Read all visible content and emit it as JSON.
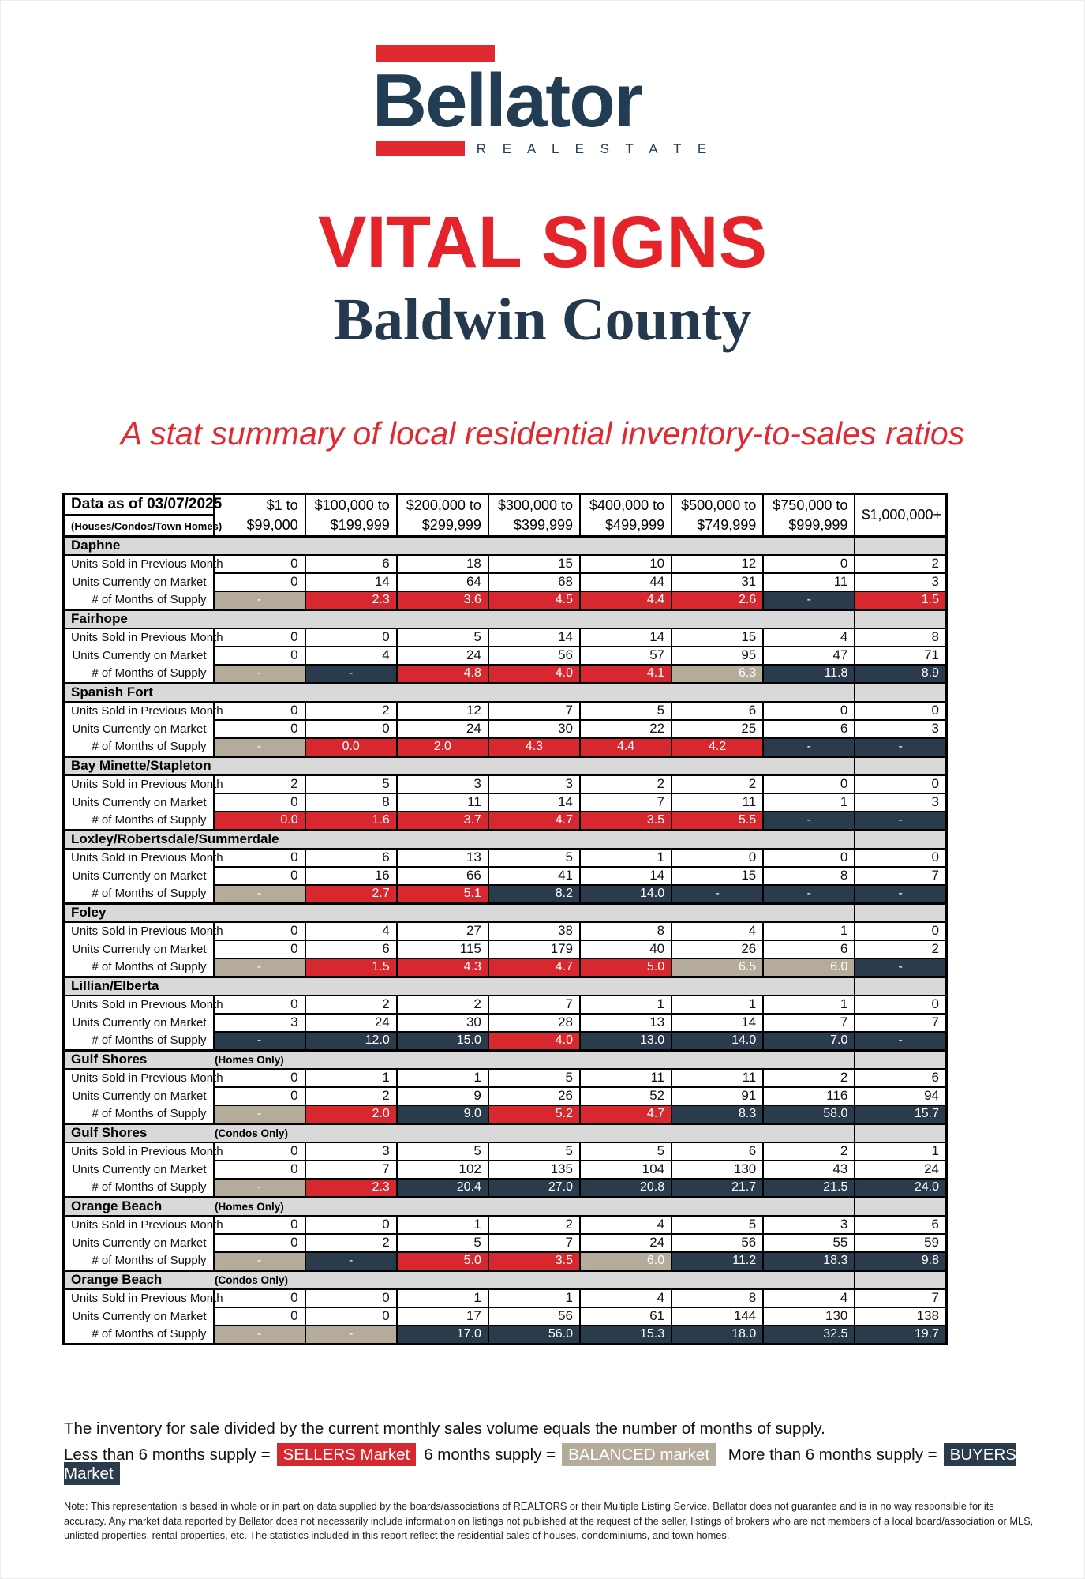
{
  "logo": {
    "brand": "Bellator",
    "tagline": "R E A L   E S T A T E"
  },
  "title": "VITAL SIGNS",
  "county": "Baldwin County",
  "tagline": "A stat summary of local residential inventory-to-sales ratios",
  "colors": {
    "red": "#d7282f",
    "tan": "#b5ab9a",
    "navy": "#2a3b4c",
    "heading_navy": "#223c54",
    "band_gray": "#d9d9d9"
  },
  "table": {
    "title_line1": "Data as of 03/07/2025",
    "title_line2": "(Houses/Condos/Town Homes)",
    "columns": [
      {
        "line1": "$1 to",
        "line2": "$99,000"
      },
      {
        "line1": "$100,000 to",
        "line2": "$199,999"
      },
      {
        "line1": "$200,000 to",
        "line2": "$299,999"
      },
      {
        "line1": "$300,000 to",
        "line2": "$399,999"
      },
      {
        "line1": "$400,000 to",
        "line2": "$499,999"
      },
      {
        "line1": "$500,000 to",
        "line2": "$749,999"
      },
      {
        "line1": "$750,000 to",
        "line2": "$999,999"
      },
      {
        "line1": "$1,000,000+",
        "line2": ""
      }
    ],
    "row_labels": [
      "Units Sold in Previous Month",
      "Units Currently on Market",
      "# of Months of Supply"
    ],
    "sections": [
      {
        "name": "Daphne",
        "note": "",
        "sold": [
          "0",
          "6",
          "18",
          "15",
          "10",
          "12",
          "0",
          "2"
        ],
        "on_market": [
          "0",
          "14",
          "64",
          "68",
          "44",
          "31",
          "11",
          "3"
        ],
        "supply": [
          {
            "v": "-",
            "c": "tan"
          },
          {
            "v": "2.3",
            "c": "red"
          },
          {
            "v": "3.6",
            "c": "red"
          },
          {
            "v": "4.5",
            "c": "red"
          },
          {
            "v": "4.4",
            "c": "red"
          },
          {
            "v": "2.6",
            "c": "red"
          },
          {
            "v": "-",
            "c": "navy"
          },
          {
            "v": "1.5",
            "c": "red"
          }
        ]
      },
      {
        "name": "Fairhope",
        "note": "",
        "sold": [
          "0",
          "0",
          "5",
          "14",
          "14",
          "15",
          "4",
          "8"
        ],
        "on_market": [
          "0",
          "4",
          "24",
          "56",
          "57",
          "95",
          "47",
          "71"
        ],
        "supply": [
          {
            "v": "-",
            "c": "tan"
          },
          {
            "v": "-",
            "c": "navy"
          },
          {
            "v": "4.8",
            "c": "red"
          },
          {
            "v": "4.0",
            "c": "red"
          },
          {
            "v": "4.1",
            "c": "red"
          },
          {
            "v": "6.3",
            "c": "tan"
          },
          {
            "v": "11.8",
            "c": "navy"
          },
          {
            "v": "8.9",
            "c": "navy"
          }
        ]
      },
      {
        "name": "Spanish Fort",
        "note": "",
        "center": true,
        "sold": [
          "0",
          "2",
          "12",
          "7",
          "5",
          "6",
          "0",
          "0"
        ],
        "on_market": [
          "0",
          "0",
          "24",
          "30",
          "22",
          "25",
          "6",
          "3"
        ],
        "supply": [
          {
            "v": "-",
            "c": "tan"
          },
          {
            "v": "0.0",
            "c": "red"
          },
          {
            "v": "2.0",
            "c": "red"
          },
          {
            "v": "4.3",
            "c": "red"
          },
          {
            "v": "4.4",
            "c": "red"
          },
          {
            "v": "4.2",
            "c": "red"
          },
          {
            "v": "-",
            "c": "navy"
          },
          {
            "v": "-",
            "c": "navy"
          }
        ]
      },
      {
        "name": "Bay Minette/Stapleton",
        "note": "",
        "sold": [
          "2",
          "5",
          "3",
          "3",
          "2",
          "2",
          "0",
          "0"
        ],
        "on_market": [
          "0",
          "8",
          "11",
          "14",
          "7",
          "11",
          "1",
          "3"
        ],
        "supply": [
          {
            "v": "0.0",
            "c": "red"
          },
          {
            "v": "1.6",
            "c": "red"
          },
          {
            "v": "3.7",
            "c": "red"
          },
          {
            "v": "4.7",
            "c": "red"
          },
          {
            "v": "3.5",
            "c": "red"
          },
          {
            "v": "5.5",
            "c": "red"
          },
          {
            "v": "-",
            "c": "navy"
          },
          {
            "v": "-",
            "c": "navy"
          }
        ]
      },
      {
        "name": "Loxley/Robertsdale/Summerdale",
        "note": "",
        "sold": [
          "0",
          "6",
          "13",
          "5",
          "1",
          "0",
          "0",
          "0"
        ],
        "on_market": [
          "0",
          "16",
          "66",
          "41",
          "14",
          "15",
          "8",
          "7"
        ],
        "supply": [
          {
            "v": "-",
            "c": "tan"
          },
          {
            "v": "2.7",
            "c": "red"
          },
          {
            "v": "5.1",
            "c": "red"
          },
          {
            "v": "8.2",
            "c": "navy"
          },
          {
            "v": "14.0",
            "c": "navy"
          },
          {
            "v": "-",
            "c": "navy"
          },
          {
            "v": "-",
            "c": "navy"
          },
          {
            "v": "-",
            "c": "navy"
          }
        ]
      },
      {
        "name": "Foley",
        "note": "",
        "sold": [
          "0",
          "4",
          "27",
          "38",
          "8",
          "4",
          "1",
          "0"
        ],
        "on_market": [
          "0",
          "6",
          "115",
          "179",
          "40",
          "26",
          "6",
          "2"
        ],
        "supply": [
          {
            "v": "-",
            "c": "tan"
          },
          {
            "v": "1.5",
            "c": "red"
          },
          {
            "v": "4.3",
            "c": "red"
          },
          {
            "v": "4.7",
            "c": "red"
          },
          {
            "v": "5.0",
            "c": "red"
          },
          {
            "v": "6.5",
            "c": "tan"
          },
          {
            "v": "6.0",
            "c": "tan"
          },
          {
            "v": "-",
            "c": "navy"
          }
        ]
      },
      {
        "name": "Lillian/Elberta",
        "note": "",
        "sold": [
          "0",
          "2",
          "2",
          "7",
          "1",
          "1",
          "1",
          "0"
        ],
        "on_market": [
          "3",
          "24",
          "30",
          "28",
          "13",
          "14",
          "7",
          "7"
        ],
        "supply": [
          {
            "v": "-",
            "c": "navy"
          },
          {
            "v": "12.0",
            "c": "navy"
          },
          {
            "v": "15.0",
            "c": "navy"
          },
          {
            "v": "4.0",
            "c": "red"
          },
          {
            "v": "13.0",
            "c": "navy"
          },
          {
            "v": "14.0",
            "c": "navy"
          },
          {
            "v": "7.0",
            "c": "navy"
          },
          {
            "v": "-",
            "c": "navy"
          }
        ]
      },
      {
        "name": "Gulf Shores",
        "note": "(Homes Only)",
        "sold": [
          "0",
          "1",
          "1",
          "5",
          "11",
          "11",
          "2",
          "6"
        ],
        "on_market": [
          "0",
          "2",
          "9",
          "26",
          "52",
          "91",
          "116",
          "94"
        ],
        "supply": [
          {
            "v": "-",
            "c": "tan"
          },
          {
            "v": "2.0",
            "c": "red"
          },
          {
            "v": "9.0",
            "c": "navy"
          },
          {
            "v": "5.2",
            "c": "red"
          },
          {
            "v": "4.7",
            "c": "red"
          },
          {
            "v": "8.3",
            "c": "navy"
          },
          {
            "v": "58.0",
            "c": "navy"
          },
          {
            "v": "15.7",
            "c": "navy"
          }
        ]
      },
      {
        "name": "Gulf Shores",
        "note": "(Condos Only)",
        "sold": [
          "0",
          "3",
          "5",
          "5",
          "5",
          "6",
          "2",
          "1"
        ],
        "on_market": [
          "0",
          "7",
          "102",
          "135",
          "104",
          "130",
          "43",
          "24"
        ],
        "supply": [
          {
            "v": "-",
            "c": "tan"
          },
          {
            "v": "2.3",
            "c": "red"
          },
          {
            "v": "20.4",
            "c": "navy"
          },
          {
            "v": "27.0",
            "c": "navy"
          },
          {
            "v": "20.8",
            "c": "navy"
          },
          {
            "v": "21.7",
            "c": "navy"
          },
          {
            "v": "21.5",
            "c": "navy"
          },
          {
            "v": "24.0",
            "c": "navy"
          }
        ]
      },
      {
        "name": "Orange Beach",
        "note": "(Homes Only)",
        "sold": [
          "0",
          "0",
          "1",
          "2",
          "4",
          "5",
          "3",
          "6"
        ],
        "on_market": [
          "0",
          "2",
          "5",
          "7",
          "24",
          "56",
          "55",
          "59"
        ],
        "supply": [
          {
            "v": "-",
            "c": "tan"
          },
          {
            "v": "-",
            "c": "navy"
          },
          {
            "v": "5.0",
            "c": "red"
          },
          {
            "v": "3.5",
            "c": "red"
          },
          {
            "v": "6.0",
            "c": "tan"
          },
          {
            "v": "11.2",
            "c": "navy"
          },
          {
            "v": "18.3",
            "c": "navy"
          },
          {
            "v": "9.8",
            "c": "navy"
          }
        ]
      },
      {
        "name": "Orange Beach",
        "note": "(Condos Only)",
        "sold": [
          "0",
          "0",
          "1",
          "1",
          "4",
          "8",
          "4",
          "7"
        ],
        "on_market": [
          "0",
          "0",
          "17",
          "56",
          "61",
          "144",
          "130",
          "138"
        ],
        "supply": [
          {
            "v": "-",
            "c": "tan"
          },
          {
            "v": "-",
            "c": "tan"
          },
          {
            "v": "17.0",
            "c": "navy"
          },
          {
            "v": "56.0",
            "c": "navy"
          },
          {
            "v": "15.3",
            "c": "navy"
          },
          {
            "v": "18.0",
            "c": "navy"
          },
          {
            "v": "32.5",
            "c": "navy"
          },
          {
            "v": "19.7",
            "c": "navy"
          }
        ]
      }
    ]
  },
  "footer": {
    "formula": "The inventory for sale divided by the current monthly sales volume equals the number of months of supply.",
    "legend_parts": [
      {
        "text": "Less than 6 months supply ="
      },
      {
        "text": "SELLERS Market",
        "color": "red"
      },
      {
        "text": "6 months supply ="
      },
      {
        "text": "BALANCED market",
        "color": "tan"
      },
      {
        "text": " More than 6 months supply ="
      },
      {
        "text": "BUYERS Market",
        "color": "navy"
      }
    ],
    "note": "Note: This representation is based in whole or in part on data supplied by the boards/associations of REALTORS or their Multiple Listing Service. Bellator does not guarantee and is in no way responsible for its accuracy. Any market data reported by Bellator does not necessarily include information on listings not published at the request of the seller, listings of brokers who are not members of a local board/association or MLS, unlisted properties, rental properties, etc. The statistics included in this report reflect the residential sales of houses, condominiums, and town homes."
  }
}
